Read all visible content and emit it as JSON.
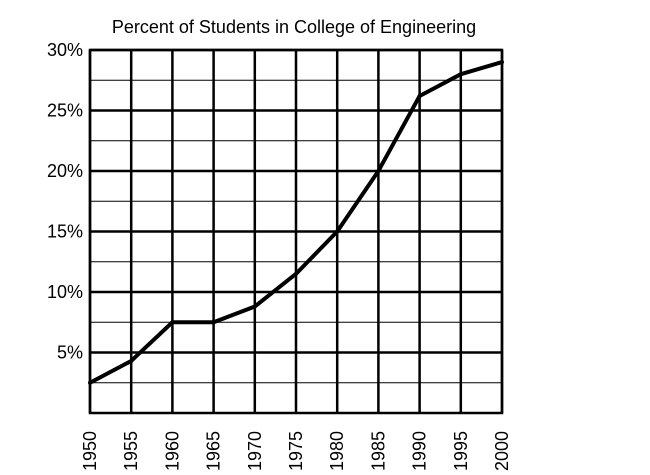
{
  "chart_data": {
    "type": "line",
    "title": "Percent of Students in College of Engineering",
    "xlabel": "",
    "ylabel": "",
    "x": [
      1950,
      1955,
      1960,
      1965,
      1970,
      1975,
      1980,
      1985,
      1990,
      1995,
      2000
    ],
    "x_tick_labels": [
      "1950",
      "1955",
      "1960",
      "1965",
      "1970",
      "1975",
      "1980",
      "1985",
      "1990",
      "1995",
      "2000"
    ],
    "series": [
      {
        "values": [
          2.5,
          4.3,
          7.5,
          7.5,
          8.8,
          11.5,
          15,
          20,
          26.2,
          28,
          29
        ]
      }
    ],
    "xlim": [
      1950,
      2000
    ],
    "ylim": [
      0,
      30
    ],
    "y_ticks": [
      5,
      10,
      15,
      20,
      25,
      30
    ],
    "y_tick_labels": [
      "5%",
      "10%",
      "15%",
      "20%",
      "25%",
      "30%"
    ],
    "grid": true,
    "legend": "none",
    "colors": {
      "line": "#000000",
      "grid": "#000000",
      "background": "#ffffff"
    }
  }
}
